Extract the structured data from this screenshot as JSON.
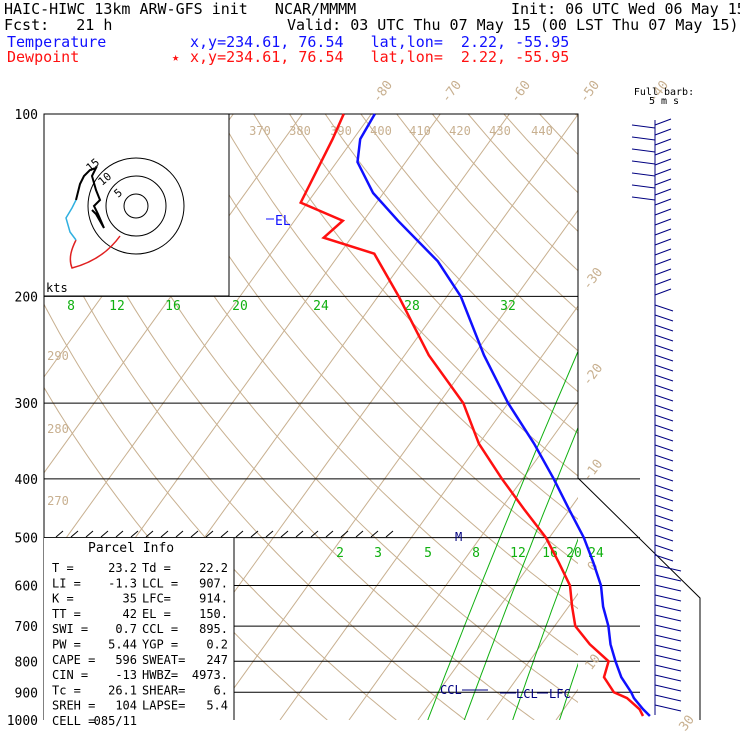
{
  "header": {
    "model": "HAIC-HIWC 13km ARW-GFS init   NCAR/MMMM",
    "init": "Init: 06 UTC Wed 06 May 15",
    "fcst": "Fcst:   21 h",
    "valid": "Valid: 03 UTC Thu 07 May 15 (00 LST Thu 07 May 15)",
    "temp_label": "Temperature",
    "temp_loc": "x,y=234.61, 76.54   lat,lon=  2.22, -55.95",
    "dew_label": "Dewpoint",
    "dew_loc": "x,y=234.61, 76.54   lat,lon=  2.22, -55.95",
    "star": "★"
  },
  "barb_title": [
    "Full barb:",
    "5 m s"
  ],
  "hodo_units": "kts",
  "hodo_rings": [
    "5",
    "10",
    "15"
  ],
  "level_labels": {
    "EL": "EL",
    "M": "M",
    "CCL": "CCL",
    "LCL": "LCL",
    "LFC": "LFC"
  },
  "parcel": {
    "title": "Parcel Info",
    "rows": [
      [
        "T  =",
        "23.2",
        "Td =",
        "22.2"
      ],
      [
        "LI =",
        "-1.3",
        "LCL =",
        "907."
      ],
      [
        "K  =",
        "35",
        "LFC=",
        "914."
      ],
      [
        "TT =",
        "42",
        "EL =",
        "150."
      ],
      [
        "SWI =",
        "0.7",
        "CCL =",
        "895."
      ],
      [
        "PW =",
        "5.44",
        "YGP =",
        "0.2"
      ],
      [
        "CAPE =",
        "596",
        "SWEAT=",
        "247"
      ],
      [
        "CIN =",
        "-13",
        "HWBZ=",
        "4973."
      ],
      [
        "Tc =",
        "26.1",
        "SHEAR=",
        "6."
      ],
      [
        "SREH =",
        "104",
        "LAPSE=",
        "5.4"
      ],
      [
        "CELL =",
        "085/11",
        "",
        ""
      ]
    ]
  },
  "colors": {
    "temperature": "#1010ff",
    "dewpoint": "#ff1010",
    "isotherm": "#c8b090",
    "mixing": "#10b010",
    "barb": "#000080",
    "hodo_upper": "#000000",
    "hodo_lower_cyan": "#30b0e0",
    "hodo_lower_red": "#e02020"
  },
  "chart_data": {
    "type": "line",
    "title": "Skew-T log-P sounding",
    "ylabel": "Pressure (hPa)",
    "ylim": [
      1000,
      100
    ],
    "pressure_ticks": [
      "100",
      "200",
      "300",
      "400",
      "500",
      "600",
      "700",
      "800",
      "900",
      "1000"
    ],
    "isotherm_labels": [
      "-80",
      "-70",
      "-60",
      "-50",
      "-40",
      "-30",
      "-20",
      "-10",
      "0",
      "10",
      "20",
      "30",
      "40"
    ],
    "theta_labels_top": [
      "370",
      "380",
      "390",
      "400",
      "410",
      "420",
      "430",
      "440"
    ],
    "theta_labels_left": [
      "290",
      "280",
      "270"
    ],
    "mixing_labels_upper": [
      "8",
      "12",
      "16",
      "20",
      "24",
      "28",
      "32"
    ],
    "mixing_labels_lower": [
      "2",
      "3",
      "5",
      "8",
      "12",
      "16",
      "20",
      "24"
    ],
    "series": [
      {
        "name": "Temperature",
        "points": [
          [
            985,
            23.2
          ],
          [
            960,
            21.5
          ],
          [
            920,
            19.0
          ],
          [
            900,
            18.0
          ],
          [
            850,
            15.0
          ],
          [
            800,
            12.5
          ],
          [
            750,
            10.0
          ],
          [
            700,
            7.8
          ],
          [
            650,
            5.0
          ],
          [
            600,
            2.5
          ],
          [
            550,
            -1.0
          ],
          [
            500,
            -5.0
          ],
          [
            450,
            -10.0
          ],
          [
            400,
            -15.5
          ],
          [
            350,
            -22.0
          ],
          [
            300,
            -30.0
          ],
          [
            250,
            -38.5
          ],
          [
            200,
            -48.0
          ],
          [
            175,
            -55.0
          ],
          [
            150,
            -65.0
          ],
          [
            135,
            -71.5
          ],
          [
            120,
            -77.0
          ],
          [
            110,
            -79.0
          ],
          [
            100,
            -79.5
          ]
        ]
      },
      {
        "name": "Dewpoint",
        "points": [
          [
            985,
            22.2
          ],
          [
            960,
            21.0
          ],
          [
            920,
            18.0
          ],
          [
            900,
            15.5
          ],
          [
            850,
            12.5
          ],
          [
            800,
            11.5
          ],
          [
            750,
            7.0
          ],
          [
            700,
            3.0
          ],
          [
            650,
            0.5
          ],
          [
            600,
            -2.0
          ],
          [
            550,
            -6.0
          ],
          [
            500,
            -10.5
          ],
          [
            450,
            -16.5
          ],
          [
            400,
            -23.0
          ],
          [
            350,
            -30.0
          ],
          [
            300,
            -36.5
          ],
          [
            250,
            -46.5
          ],
          [
            200,
            -57.0
          ],
          [
            170,
            -65.0
          ],
          [
            160,
            -74.0
          ],
          [
            150,
            -73.0
          ],
          [
            140,
            -81.0
          ],
          [
            110,
            -83.0
          ],
          [
            100,
            -84.0
          ]
        ]
      }
    ]
  }
}
